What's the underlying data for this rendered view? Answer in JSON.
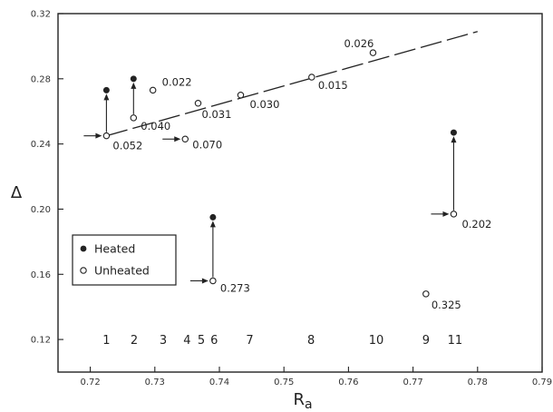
{
  "chart_data": {
    "type": "scatter",
    "title": "",
    "xlabel": "R",
    "xlabel_sub": "a",
    "ylabel": "Δ",
    "xlim": [
      0.715,
      0.79
    ],
    "ylim": [
      0.1,
      0.32
    ],
    "xticks": [
      "0.72",
      "0.73",
      "0.74",
      "0.75",
      "0.76",
      "0.77",
      "0.78",
      "0.79"
    ],
    "yticks": [
      "0.12",
      "0.16",
      "0.20",
      "0.24",
      "0.28",
      "0.32"
    ],
    "grid": false,
    "legend": {
      "placement": "lower-left",
      "entries": [
        {
          "label": "Heated",
          "marker": "filled"
        },
        {
          "label": "Unheated",
          "marker": "open"
        }
      ]
    },
    "fit_line": {
      "style": "dashed",
      "x": [
        0.7225,
        0.78
      ],
      "y": [
        0.245,
        0.309
      ]
    },
    "heated": [
      {
        "x": 0.7225,
        "y": 0.273
      },
      {
        "x": 0.7267,
        "y": 0.28
      },
      {
        "x": 0.739,
        "y": 0.195
      },
      {
        "x": 0.7763,
        "y": 0.247
      }
    ],
    "unheated": [
      {
        "x": 0.7225,
        "y": 0.245,
        "label": "0.052"
      },
      {
        "x": 0.7267,
        "y": 0.256,
        "label": "0.040"
      },
      {
        "x": 0.7297,
        "y": 0.273,
        "label": "0.022"
      },
      {
        "x": 0.7347,
        "y": 0.243,
        "label": "0.070"
      },
      {
        "x": 0.7367,
        "y": 0.265,
        "label": "0.031"
      },
      {
        "x": 0.739,
        "y": 0.156,
        "label": "0.273"
      },
      {
        "x": 0.7433,
        "y": 0.27,
        "label": "0.030"
      },
      {
        "x": 0.7543,
        "y": 0.281,
        "label": "0.015"
      },
      {
        "x": 0.7638,
        "y": 0.296,
        "label": "0.026"
      },
      {
        "x": 0.772,
        "y": 0.148,
        "label": "0.325"
      },
      {
        "x": 0.7763,
        "y": 0.197,
        "label": "0.202"
      }
    ],
    "heating_arrows": [
      {
        "x": 0.7225,
        "y_from": 0.245,
        "y_to": 0.273
      },
      {
        "x": 0.7267,
        "y_from": 0.256,
        "y_to": 0.28
      },
      {
        "x": 0.739,
        "y_from": 0.156,
        "y_to": 0.195
      },
      {
        "x": 0.7763,
        "y_from": 0.197,
        "y_to": 0.247
      }
    ],
    "case_numbers": [
      {
        "x": 0.7225,
        "label": "1"
      },
      {
        "x": 0.7268,
        "label": "2"
      },
      {
        "x": 0.7313,
        "label": "3"
      },
      {
        "x": 0.735,
        "label": "4"
      },
      {
        "x": 0.7372,
        "label": "5"
      },
      {
        "x": 0.7392,
        "label": "6"
      },
      {
        "x": 0.7447,
        "label": "7"
      },
      {
        "x": 0.7542,
        "label": "8"
      },
      {
        "x": 0.7643,
        "label": "10"
      },
      {
        "x": 0.772,
        "label": "9"
      },
      {
        "x": 0.7765,
        "label": "11"
      }
    ],
    "case_numbers_y": 0.12
  }
}
